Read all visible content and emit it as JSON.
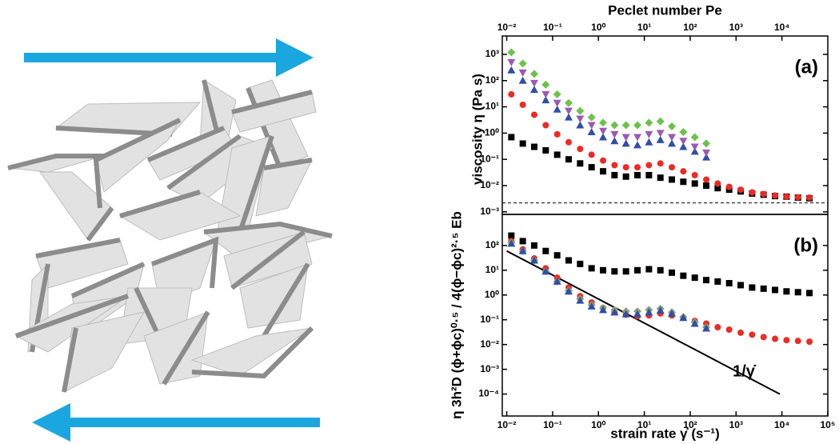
{
  "chart_data": [
    {
      "type": "scatter",
      "panel_label": "(a)",
      "log_x": true,
      "log_y": true,
      "ylabel": "viscosity η (Pa s)",
      "x2label": "Peclet number Pe",
      "xlim": [
        0.008,
        100000
      ],
      "ylim": [
        0.0008,
        5000
      ],
      "x2ticks": [
        {
          "value": 0.01,
          "label": "10⁻²"
        },
        {
          "value": 0.1,
          "label": "10⁻¹"
        },
        {
          "value": 1,
          "label": "10⁰"
        },
        {
          "value": 10,
          "label": "10¹"
        },
        {
          "value": 100,
          "label": "10²"
        },
        {
          "value": 1000,
          "label": "10³"
        },
        {
          "value": 10000,
          "label": "10⁴"
        }
      ],
      "yticks": [
        {
          "value": 0.001,
          "label": "10⁻³"
        },
        {
          "value": 0.01,
          "label": "10⁻²"
        },
        {
          "value": 0.1,
          "label": "10⁻¹"
        },
        {
          "value": 1,
          "label": "10⁰"
        },
        {
          "value": 10,
          "label": "10¹"
        },
        {
          "value": 100,
          "label": "10²"
        },
        {
          "value": 1000,
          "label": "10³"
        }
      ],
      "reference_line": {
        "value": 0.0022,
        "color": "#000000"
      },
      "series": [
        {
          "marker": "square",
          "color": "#000000",
          "x": [
            0.0126,
            0.0224,
            0.0398,
            0.0708,
            0.126,
            0.224,
            0.398,
            0.708,
            1.26,
            2.24,
            3.98,
            7.08,
            12.6,
            22.4,
            39.8,
            70.8,
            126,
            224,
            398,
            708,
            1259,
            2239,
            3981,
            7079,
            12589,
            22387,
            39811
          ],
          "values": [
            0.7,
            0.4,
            0.3,
            0.22,
            0.15,
            0.1,
            0.07,
            0.05,
            0.035,
            0.025,
            0.022,
            0.025,
            0.025,
            0.02,
            0.017,
            0.014,
            0.012,
            0.01,
            0.008,
            0.007,
            0.006,
            0.005,
            0.0045,
            0.004,
            0.0038,
            0.0035,
            0.0033
          ]
        },
        {
          "marker": "circle",
          "color": "#ee2a24",
          "x": [
            0.0126,
            0.0224,
            0.0398,
            0.0708,
            0.126,
            0.224,
            0.398,
            0.708,
            1.26,
            2.24,
            3.98,
            7.08,
            12.6,
            22.4,
            39.8,
            70.8,
            126,
            224,
            398,
            708,
            1259,
            2239,
            3981,
            7079,
            12589,
            22387,
            39811
          ],
          "values": [
            30,
            12,
            5,
            2,
            0.9,
            0.45,
            0.25,
            0.15,
            0.09,
            0.06,
            0.05,
            0.05,
            0.06,
            0.07,
            0.05,
            0.035,
            0.025,
            0.017,
            0.012,
            0.009,
            0.007,
            0.0055,
            0.0048,
            0.0042,
            0.0038,
            0.0036,
            0.0035
          ]
        },
        {
          "marker": "triangle-up",
          "color": "#2f4fa8",
          "x": [
            0.0126,
            0.0224,
            0.0398,
            0.0708,
            0.126,
            0.224,
            0.398,
            0.708,
            1.26,
            2.24,
            3.98,
            7.08,
            12.6,
            22.4,
            39.8,
            70.8,
            126,
            224
          ],
          "values": [
            250,
            100,
            45,
            18,
            8,
            4,
            2,
            1.1,
            0.7,
            0.5,
            0.4,
            0.35,
            0.45,
            0.55,
            0.4,
            0.3,
            0.2,
            0.12
          ]
        },
        {
          "marker": "triangle-down",
          "color": "#9b59b6",
          "x": [
            0.0126,
            0.0224,
            0.0398,
            0.0708,
            0.126,
            0.224,
            0.398,
            0.708,
            1.26,
            2.24,
            3.98,
            7.08,
            12.6,
            22.4,
            39.8,
            70.8,
            126,
            224
          ],
          "values": [
            500,
            200,
            80,
            30,
            14,
            7,
            3.5,
            2,
            1.2,
            0.9,
            0.7,
            0.7,
            0.9,
            1.0,
            0.7,
            0.5,
            0.3,
            0.18
          ]
        },
        {
          "marker": "diamond",
          "color": "#6cc24a",
          "x": [
            0.0126,
            0.0224,
            0.0398,
            0.0708,
            0.126,
            0.224,
            0.398,
            0.708,
            1.26,
            2.24,
            3.98,
            7.08,
            12.6,
            22.4,
            39.8,
            70.8,
            126,
            224
          ],
          "values": [
            1200,
            450,
            180,
            70,
            30,
            14,
            7,
            4,
            2.5,
            2,
            2,
            2,
            2.5,
            2.8,
            1.8,
            1.1,
            0.7,
            0.4
          ]
        }
      ]
    },
    {
      "type": "scatter",
      "panel_label": "(b)",
      "log_x": true,
      "log_y": true,
      "ylabel": "η 3h²D (ϕ+ϕc)⁰·⁵ / 4(ϕ−ϕc)²·⁵ Eb",
      "xlabel": "strain rate γ̇ (s⁻¹)",
      "xlim": [
        0.008,
        100000
      ],
      "ylim": [
        1.3e-05,
        1800
      ],
      "xticks": [
        {
          "value": 0.01,
          "label": "10⁻²"
        },
        {
          "value": 0.1,
          "label": "10⁻¹"
        },
        {
          "value": 1,
          "label": "10⁰"
        },
        {
          "value": 10,
          "label": "10¹"
        },
        {
          "value": 100,
          "label": "10²"
        },
        {
          "value": 1000,
          "label": "10³"
        },
        {
          "value": 10000,
          "label": "10⁴"
        },
        {
          "value": 100000,
          "label": "10⁵"
        }
      ],
      "yticks": [
        {
          "value": 0.0001,
          "label": "10⁻⁴"
        },
        {
          "value": 0.001,
          "label": "10⁻³"
        },
        {
          "value": 0.01,
          "label": "10⁻²"
        },
        {
          "value": 0.1,
          "label": "10⁻¹"
        },
        {
          "value": 1,
          "label": "10⁰"
        },
        {
          "value": 10,
          "label": "10¹"
        },
        {
          "value": 100,
          "label": "10²"
        }
      ],
      "fit_line": {
        "label": "1/γ̇",
        "x": [
          0.01,
          9000
        ],
        "values": [
          60,
          0.0001
        ],
        "color": "#000000"
      },
      "series": [
        {
          "marker": "square",
          "color": "#000000",
          "x": [
            0.0126,
            0.0224,
            0.0398,
            0.0708,
            0.126,
            0.224,
            0.398,
            0.708,
            1.26,
            2.24,
            3.98,
            7.08,
            12.6,
            22.4,
            39.8,
            70.8,
            126,
            224,
            398,
            708,
            1259,
            2239,
            3981,
            7079,
            12589,
            22387,
            39811
          ],
          "values": [
            250,
            150,
            100,
            60,
            40,
            25,
            18,
            12,
            10,
            9,
            9,
            10,
            11,
            10,
            8,
            6,
            5,
            4,
            3.5,
            3,
            2.5,
            2,
            1.8,
            1.6,
            1.4,
            1.3,
            1.2
          ]
        },
        {
          "marker": "circle",
          "color": "#ee2a24",
          "x": [
            0.0126,
            0.0224,
            0.0398,
            0.0708,
            0.126,
            0.224,
            0.398,
            0.708,
            1.26,
            2.24,
            3.98,
            7.08,
            12.6,
            22.4,
            39.8,
            70.8,
            126,
            224,
            398,
            708,
            1259,
            2239,
            3981,
            7079,
            12589,
            22387,
            39811
          ],
          "values": [
            150,
            70,
            30,
            12,
            5,
            2,
            0.9,
            0.5,
            0.3,
            0.2,
            0.16,
            0.14,
            0.15,
            0.18,
            0.15,
            0.12,
            0.09,
            0.07,
            0.05,
            0.04,
            0.03,
            0.025,
            0.02,
            0.017,
            0.015,
            0.014,
            0.013
          ]
        },
        {
          "marker": "diamond",
          "color": "#8aa07a",
          "x": [
            0.0126,
            0.0224,
            0.0398,
            0.0708,
            0.126,
            0.224,
            0.398,
            0.708,
            1.26,
            2.24,
            3.98,
            7.08,
            12.6,
            22.4,
            39.8,
            70.8,
            126,
            224
          ],
          "values": [
            130,
            60,
            25,
            9,
            3.5,
            1.5,
            0.7,
            0.4,
            0.3,
            0.25,
            0.22,
            0.22,
            0.25,
            0.28,
            0.2,
            0.13,
            0.08,
            0.05
          ]
        },
        {
          "marker": "triangle-up",
          "color": "#2f4fa8",
          "x": [
            0.0126,
            0.0224,
            0.0398,
            0.0708,
            0.126,
            0.224,
            0.398,
            0.708,
            1.26,
            2.24,
            3.98,
            7.08,
            12.6,
            22.4,
            39.8,
            70.8,
            126,
            224
          ],
          "values": [
            120,
            60,
            25,
            9,
            3.5,
            1.4,
            0.6,
            0.35,
            0.25,
            0.2,
            0.17,
            0.17,
            0.2,
            0.24,
            0.18,
            0.12,
            0.07,
            0.045
          ]
        }
      ]
    }
  ]
}
